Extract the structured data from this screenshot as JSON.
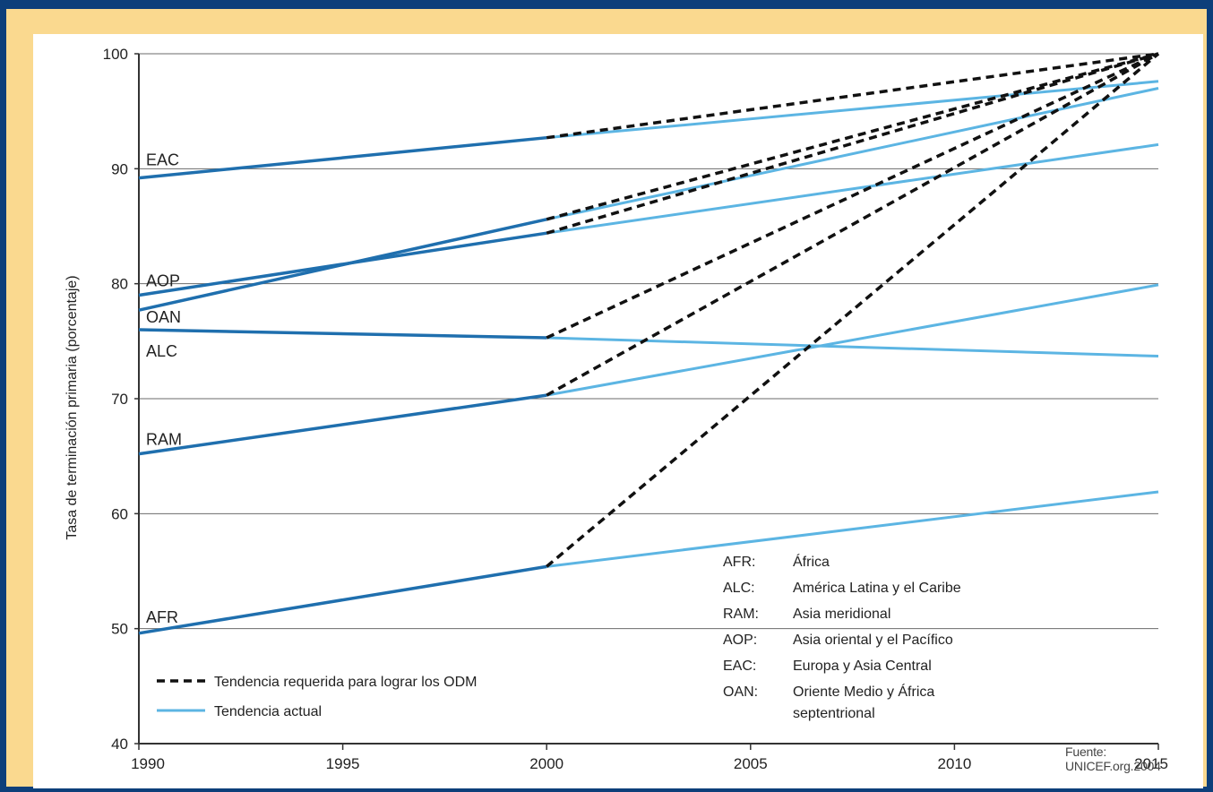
{
  "chart_data": {
    "type": "line",
    "title": "",
    "xlabel": "",
    "ylabel": "Tasa de terminación primaria (porcentaje)",
    "xlim": [
      1990,
      2015
    ],
    "ylim": [
      40,
      100
    ],
    "xticks": [
      "1990",
      "1995",
      "2000",
      "2005",
      "2010",
      "2015"
    ],
    "yticks": [
      "40",
      "50",
      "60",
      "70",
      "80",
      "90",
      "100"
    ],
    "grid": "horizontal",
    "regions": [
      {
        "code": "EAC",
        "observed": [
          [
            1990,
            89.2
          ],
          [
            2000,
            92.7
          ]
        ],
        "actual_trend": [
          [
            2000,
            92.7
          ],
          [
            2015,
            97.6
          ]
        ],
        "required_trend": [
          [
            2000,
            92.7
          ],
          [
            2015,
            100
          ]
        ]
      },
      {
        "code": "AOP",
        "observed": [
          [
            1990,
            79.0
          ],
          [
            2000,
            84.4
          ]
        ],
        "actual_trend": [
          [
            2000,
            84.4
          ],
          [
            2015,
            92.1
          ]
        ],
        "required_trend": [
          [
            2000,
            84.4
          ],
          [
            2015,
            100
          ]
        ]
      },
      {
        "code": "OAN",
        "observed": [
          [
            1990,
            77.7
          ],
          [
            2000,
            85.6
          ]
        ],
        "actual_trend": [
          [
            2000,
            85.6
          ],
          [
            2015,
            97.0
          ]
        ],
        "required_trend": [
          [
            2000,
            85.6
          ],
          [
            2015,
            100
          ]
        ]
      },
      {
        "code": "ALC",
        "observed": [
          [
            1990,
            76.0
          ],
          [
            2000,
            75.3
          ]
        ],
        "actual_trend": [
          [
            2000,
            75.3
          ],
          [
            2015,
            73.7
          ]
        ],
        "required_trend": [
          [
            2000,
            75.3
          ],
          [
            2015,
            100
          ]
        ]
      },
      {
        "code": "RAM",
        "observed": [
          [
            1990,
            65.2
          ],
          [
            2000,
            70.3
          ]
        ],
        "actual_trend": [
          [
            2000,
            70.3
          ],
          [
            2015,
            79.9
          ]
        ],
        "required_trend": [
          [
            2000,
            70.3
          ],
          [
            2015,
            100
          ]
        ]
      },
      {
        "code": "AFR",
        "observed": [
          [
            1990,
            49.6
          ],
          [
            2000,
            55.4
          ]
        ],
        "actual_trend": [
          [
            2000,
            55.4
          ],
          [
            2015,
            61.9
          ]
        ],
        "required_trend": [
          [
            2000,
            55.4
          ],
          [
            2015,
            100
          ]
        ]
      }
    ],
    "legend": {
      "placement": "bottom-left",
      "required": "Tendencia requerida para lograr los ODM",
      "actual": "Tendencia actual"
    },
    "abbreviations": [
      {
        "code": "AFR:",
        "name": "África"
      },
      {
        "code": "ALC:",
        "name": "América Latina y el Caribe"
      },
      {
        "code": "RAM:",
        "name": "Asia meridional"
      },
      {
        "code": "AOP:",
        "name": "Asia oriental y el Pacífico"
      },
      {
        "code": "EAC:",
        "name": "Europa y Asia Central"
      },
      {
        "code": "OAN:",
        "name": "Oriente Medio y África",
        "name_line2": "septentrional"
      }
    ]
  },
  "colors": {
    "frame": "#0d3f7a",
    "mat": "#fad98f",
    "observed": "#1f6fae",
    "actual": "#5cb5e3",
    "required": "#111111",
    "grid": "#6b6b6b"
  },
  "source_note": "Fuente: UNICEF.org.2004"
}
